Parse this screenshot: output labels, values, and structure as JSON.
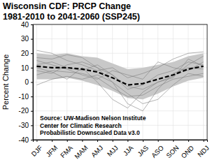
{
  "chart_data": {
    "type": "line",
    "title": "Wisconsin CDF: PRCP Change",
    "subtitle": "1981-2010 to 2041-2060 (SSP245)",
    "y_label": "Percent Change",
    "annotations": [
      "Source: UW-Madison Nelson Institute",
      "Center for Climatic Research",
      "Probabilistic Downscaled Data v3.0"
    ],
    "categories": [
      "DJF",
      "JFM",
      "FMA",
      "MAM",
      "AMJ",
      "MJJ",
      "JJA",
      "JAS",
      "ASO",
      "SON",
      "OND",
      "NDJ"
    ],
    "ylim": [
      -40,
      40
    ],
    "yticks": [
      -40,
      -30,
      -20,
      -10,
      0,
      10,
      20,
      30,
      40
    ],
    "grid": true,
    "band": {
      "lower": [
        2,
        2,
        3,
        1,
        -2,
        -6,
        -11,
        -12,
        -8,
        -3,
        1,
        3
      ],
      "upper": [
        20,
        19,
        20,
        18,
        17,
        13,
        9,
        10,
        12,
        14,
        18,
        20
      ],
      "color": "#c8c8c8"
    },
    "series": [
      {
        "color": "#808080",
        "line_style": "solid",
        "values": [
          17,
          16,
          19,
          17,
          10,
          5,
          -3,
          -5,
          0,
          4,
          12,
          18
        ]
      },
      {
        "color": "#808080",
        "line_style": "solid",
        "values": [
          5,
          8,
          7,
          6,
          3,
          -4,
          -10,
          -9,
          -3,
          2,
          4,
          6
        ]
      },
      {
        "color": "#808080",
        "line_style": "solid",
        "values": [
          22,
          20,
          15,
          12,
          8,
          10,
          3,
          6,
          10,
          16,
          20,
          21
        ]
      },
      {
        "color": "#808080",
        "line_style": "solid",
        "values": [
          -2,
          2,
          4,
          2,
          5,
          0,
          -8,
          -15,
          -12,
          -2,
          6,
          4
        ]
      },
      {
        "color": "#808080",
        "line_style": "solid",
        "values": [
          12,
          14,
          10,
          8,
          12,
          5,
          -5,
          -2,
          5,
          8,
          14,
          12
        ]
      },
      {
        "color": "#808080",
        "line_style": "solid",
        "values": [
          8,
          6,
          12,
          14,
          10,
          0,
          -15,
          -20,
          -5,
          6,
          10,
          9
        ]
      },
      {
        "color": "#808080",
        "line_style": "solid",
        "values": [
          15,
          12,
          9,
          5,
          2,
          8,
          5,
          2,
          14,
          10,
          8,
          14
        ]
      },
      {
        "color": "#808080",
        "line_style": "solid",
        "values": [
          10,
          7,
          2,
          10,
          0,
          -12,
          -18,
          -7,
          0,
          3,
          16,
          11
        ]
      },
      {
        "color": "#000000",
        "line_style": "dashed",
        "values": [
          11,
          10,
          10,
          9,
          7,
          3,
          -2,
          -1,
          2,
          5,
          9,
          11
        ]
      }
    ]
  }
}
